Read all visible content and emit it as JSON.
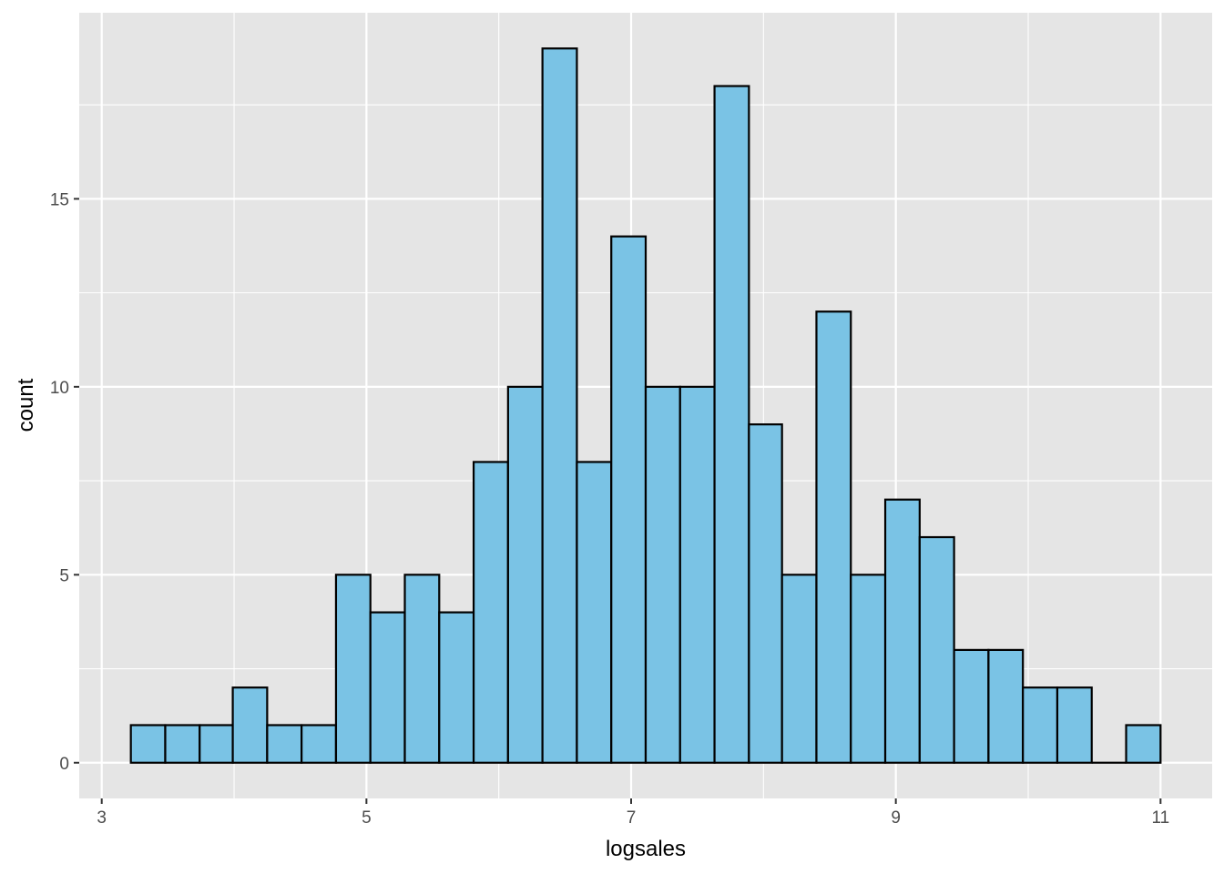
{
  "chart_data": {
    "type": "bar",
    "subtype": "histogram",
    "title": "",
    "xlabel": "logsales",
    "ylabel": "count",
    "bin_width": 0.259,
    "bins": [
      {
        "start": 3.22,
        "end": 3.48,
        "count": 1
      },
      {
        "start": 3.48,
        "end": 3.74,
        "count": 1
      },
      {
        "start": 3.74,
        "end": 3.99,
        "count": 1
      },
      {
        "start": 3.99,
        "end": 4.25,
        "count": 2
      },
      {
        "start": 4.25,
        "end": 4.51,
        "count": 1
      },
      {
        "start": 4.51,
        "end": 4.77,
        "count": 1
      },
      {
        "start": 4.77,
        "end": 5.03,
        "count": 5
      },
      {
        "start": 5.03,
        "end": 5.29,
        "count": 4
      },
      {
        "start": 5.29,
        "end": 5.55,
        "count": 5
      },
      {
        "start": 5.55,
        "end": 5.81,
        "count": 4
      },
      {
        "start": 5.81,
        "end": 6.07,
        "count": 8
      },
      {
        "start": 6.07,
        "end": 6.33,
        "count": 10
      },
      {
        "start": 6.33,
        "end": 6.59,
        "count": 19
      },
      {
        "start": 6.59,
        "end": 6.85,
        "count": 8
      },
      {
        "start": 6.85,
        "end": 7.11,
        "count": 14
      },
      {
        "start": 7.11,
        "end": 7.37,
        "count": 10
      },
      {
        "start": 7.37,
        "end": 7.63,
        "count": 10
      },
      {
        "start": 7.63,
        "end": 7.89,
        "count": 18
      },
      {
        "start": 7.89,
        "end": 8.14,
        "count": 9
      },
      {
        "start": 8.14,
        "end": 8.4,
        "count": 5
      },
      {
        "start": 8.4,
        "end": 8.66,
        "count": 12
      },
      {
        "start": 8.66,
        "end": 8.92,
        "count": 5
      },
      {
        "start": 8.92,
        "end": 9.18,
        "count": 7
      },
      {
        "start": 9.18,
        "end": 9.44,
        "count": 6
      },
      {
        "start": 9.44,
        "end": 9.7,
        "count": 3
      },
      {
        "start": 9.7,
        "end": 9.96,
        "count": 3
      },
      {
        "start": 9.96,
        "end": 10.22,
        "count": 2
      },
      {
        "start": 10.22,
        "end": 10.48,
        "count": 2
      },
      {
        "start": 10.48,
        "end": 10.74,
        "count": 0
      },
      {
        "start": 10.74,
        "end": 11.0,
        "count": 1
      }
    ],
    "xlim": [
      2.83,
      11.39
    ],
    "ylim": [
      -0.95,
      19.95
    ],
    "x_ticks": [
      3,
      5,
      7,
      9,
      11
    ],
    "x_tick_labels": [
      "3",
      "5",
      "7",
      "9",
      "11"
    ],
    "y_ticks": [
      0,
      5,
      10,
      15
    ],
    "y_tick_labels": [
      "0",
      "5",
      "10",
      "15"
    ],
    "grid": true,
    "legend": "none",
    "colors": {
      "panel_background": "#e5e5e5",
      "grid_major": "#ffffff",
      "bar_fill": "#7ac3e5",
      "bar_outline": "#000000",
      "tick_label": "#4d4d4d",
      "axis_title": "#000000"
    }
  }
}
